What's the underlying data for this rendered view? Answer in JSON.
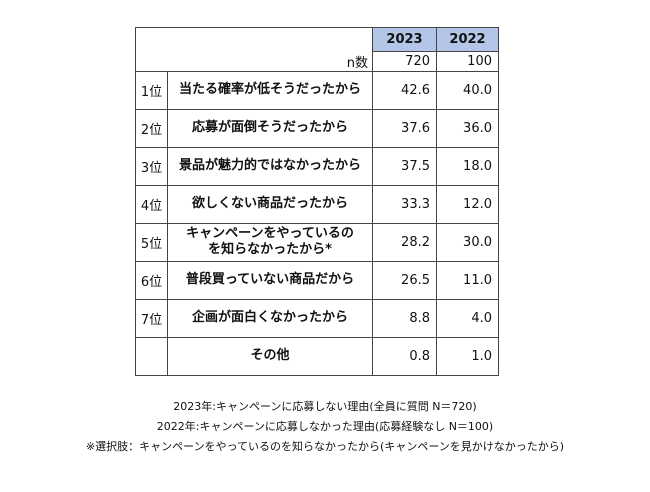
{
  "chart_data": {
    "type": "table",
    "columns": [
      "2023",
      "2022"
    ],
    "n_label": "n数",
    "n_values": [
      "720",
      "100"
    ],
    "rows": [
      {
        "rank": "1位",
        "reason": "当たる確率が低そうだったから",
        "values": [
          "42.6",
          "40.0"
        ]
      },
      {
        "rank": "2位",
        "reason": "応募が面倒そうだったから",
        "values": [
          "37.6",
          "36.0"
        ]
      },
      {
        "rank": "3位",
        "reason": "景品が魅力的ではなかったから",
        "values": [
          "37.5",
          "18.0"
        ]
      },
      {
        "rank": "4位",
        "reason": "欲しくない商品だったから",
        "values": [
          "33.3",
          "12.0"
        ]
      },
      {
        "rank": "5位",
        "reason": "キャンペーンをやっているのを知らなかったから*",
        "values": [
          "28.2",
          "30.0"
        ]
      },
      {
        "rank": "6位",
        "reason": "普段買っていない商品だから",
        "values": [
          "26.5",
          "11.0"
        ]
      },
      {
        "rank": "7位",
        "reason": "企画が面白くなかったから",
        "values": [
          "8.8",
          "4.0"
        ]
      },
      {
        "rank": "",
        "reason": "その他",
        "values": [
          "0.8",
          "1.0"
        ]
      }
    ]
  },
  "notes": [
    "2023年:キャンペーンに応募しない理由(全員に質問 N＝720)",
    "2022年:キャンペーンに応募しなかった理由(応募経験なし N＝100)",
    "※選択肢：キャンペーンをやっているのを知らなかったから(キャンペーンを見かけなかったから)"
  ],
  "colors": {
    "header_bg": "#b4c6e7",
    "border": "#444444"
  }
}
